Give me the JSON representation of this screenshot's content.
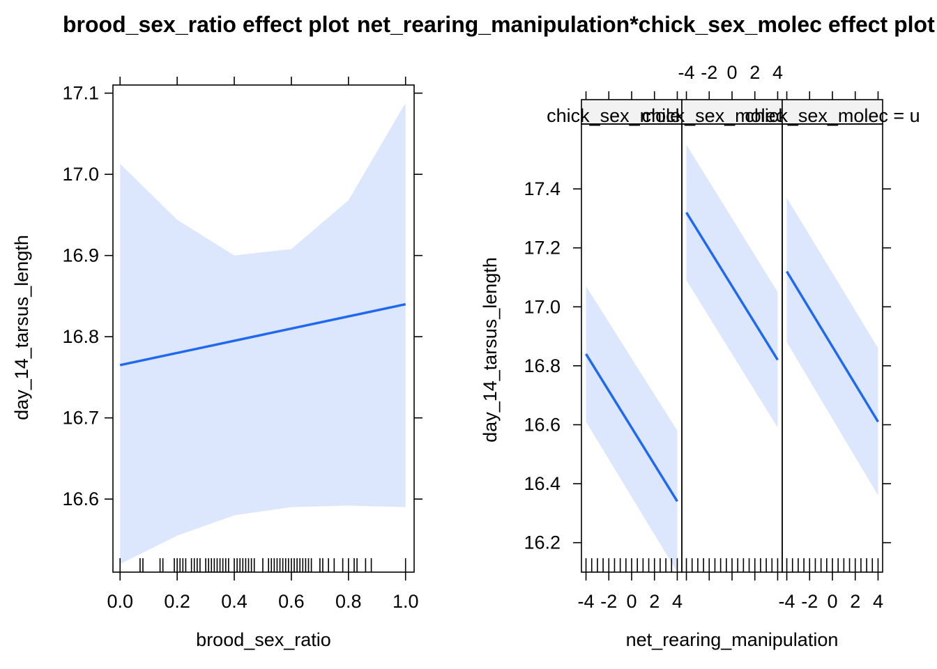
{
  "chart_data": [
    {
      "type": "line",
      "title": "brood_sex_ratio effect plot",
      "xlabel": "brood_sex_ratio",
      "ylabel": "day_14_tarsus_length",
      "xlim": [
        -0.025,
        1.03
      ],
      "ylim": [
        16.51,
        17.11
      ],
      "xticks": [
        0.0,
        0.2,
        0.4,
        0.6,
        0.8,
        1.0
      ],
      "xtick_labels": [
        "0.0",
        "0.2",
        "0.4",
        "0.6",
        "0.8",
        "1.0"
      ],
      "yticks": [
        16.6,
        16.7,
        16.8,
        16.9,
        17.0,
        17.1
      ],
      "ytick_labels": [
        "16.6",
        "16.7",
        "16.8",
        "16.9",
        "17.0",
        "17.1"
      ],
      "fit": {
        "x": [
          0.0,
          1.0
        ],
        "y": [
          16.765,
          16.84
        ]
      },
      "band": {
        "x": [
          0.0,
          0.2,
          0.4,
          0.6,
          0.8,
          1.0
        ],
        "upper": [
          17.013,
          16.944,
          16.9,
          16.908,
          16.968,
          17.088
        ],
        "lower": [
          16.52,
          16.555,
          16.58,
          16.59,
          16.592,
          16.59
        ]
      },
      "rug": [
        0.0,
        0.07,
        0.08,
        0.14,
        0.15,
        0.19,
        0.2,
        0.21,
        0.22,
        0.23,
        0.25,
        0.26,
        0.27,
        0.28,
        0.3,
        0.31,
        0.32,
        0.33,
        0.34,
        0.35,
        0.36,
        0.37,
        0.38,
        0.4,
        0.41,
        0.42,
        0.43,
        0.44,
        0.45,
        0.46,
        0.47,
        0.5,
        0.52,
        0.53,
        0.54,
        0.55,
        0.56,
        0.57,
        0.58,
        0.59,
        0.6,
        0.61,
        0.62,
        0.63,
        0.64,
        0.65,
        0.66,
        0.67,
        0.7,
        0.71,
        0.73,
        0.75,
        0.78,
        0.8,
        0.82,
        0.83,
        0.86,
        0.88,
        1.0
      ]
    },
    {
      "type": "line",
      "title": "net_rearing_manipulation*chick_sex_molec effect plot",
      "xlabel": "net_rearing_manipulation",
      "ylabel": "day_14_tarsus_length",
      "xlim": [
        -4.4,
        4.4
      ],
      "ylim": [
        16.1,
        17.62
      ],
      "xticks": [
        -4,
        -2,
        0,
        2,
        4
      ],
      "xtick_labels": [
        "-4",
        "-2",
        "0",
        "2",
        "4"
      ],
      "yticks": [
        16.2,
        16.4,
        16.6,
        16.8,
        17.0,
        17.2,
        17.4
      ],
      "ytick_labels": [
        "16.2",
        "16.4",
        "16.6",
        "16.8",
        "17.0",
        "17.2",
        "17.4"
      ],
      "rug": [
        -4,
        -3.5,
        -3,
        -2.5,
        -2,
        -1.5,
        -1,
        -0.5,
        0,
        0.5,
        1,
        1.5,
        2,
        2.5,
        3,
        3.5,
        4
      ],
      "panels": [
        {
          "strip": "chick_sex_molec = f",
          "x": [
            -4,
            4
          ],
          "fit": [
            16.84,
            16.34
          ],
          "upper": [
            17.07,
            16.58
          ],
          "lower": [
            16.61,
            16.1
          ]
        },
        {
          "strip": "chick_sex_molec = m",
          "x": [
            -4,
            4
          ],
          "fit": [
            17.32,
            16.82
          ],
          "upper": [
            17.55,
            17.05
          ],
          "lower": [
            17.09,
            16.59
          ]
        },
        {
          "strip": "chick_sex_molec = u",
          "x": [
            -4,
            4
          ],
          "fit": [
            17.12,
            16.61
          ],
          "upper": [
            17.37,
            16.86
          ],
          "lower": [
            16.88,
            16.36
          ]
        }
      ]
    }
  ],
  "colors": {
    "line": "#1f68f0",
    "band": "#dce7fd",
    "strip": "#f2f2f2",
    "axis": "#000000"
  }
}
